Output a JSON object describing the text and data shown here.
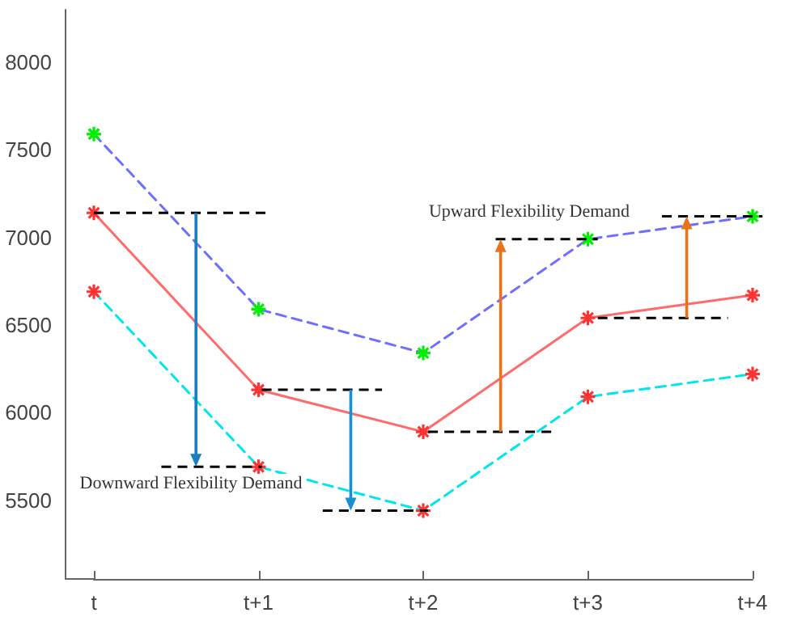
{
  "chart_data": {
    "type": "line",
    "categories": [
      "t",
      "t+1",
      "t+2",
      "t+3",
      "t+4"
    ],
    "ylim": [
      5050,
      8300
    ],
    "yticks": [
      5500,
      6000,
      6500,
      7000,
      7500,
      8000
    ],
    "grid": false,
    "series": [
      {
        "color": "#6f6fff",
        "colors": [
          "#00ee00",
          "#00ee00",
          "#00ee00",
          "#00ee00",
          "#00ee00"
        ],
        "line_style": "dashed",
        "marker": "cross",
        "values": [
          7590,
          6590,
          6340,
          6990,
          7120
        ]
      },
      {
        "color": "#ff6b6b",
        "colors": [
          "#ff3333",
          "#ff3333",
          "#ff3333",
          "#ff3333",
          "#ff3333"
        ],
        "line_style": "solid",
        "marker": "cross",
        "values": [
          7140,
          6130,
          5890,
          6540,
          6670
        ]
      },
      {
        "color": "#00e5ee",
        "colors": [
          "#ff3333",
          "#ff3333",
          "#ff3333",
          "#ff3333",
          "#ff3333"
        ],
        "line_style": "dashed",
        "marker": "cross",
        "values": [
          6690,
          5690,
          5440,
          6090,
          6220
        ]
      }
    ],
    "annotations": [
      "Downward Flexibility Demand",
      "Upward Flexibility Demand"
    ]
  }
}
